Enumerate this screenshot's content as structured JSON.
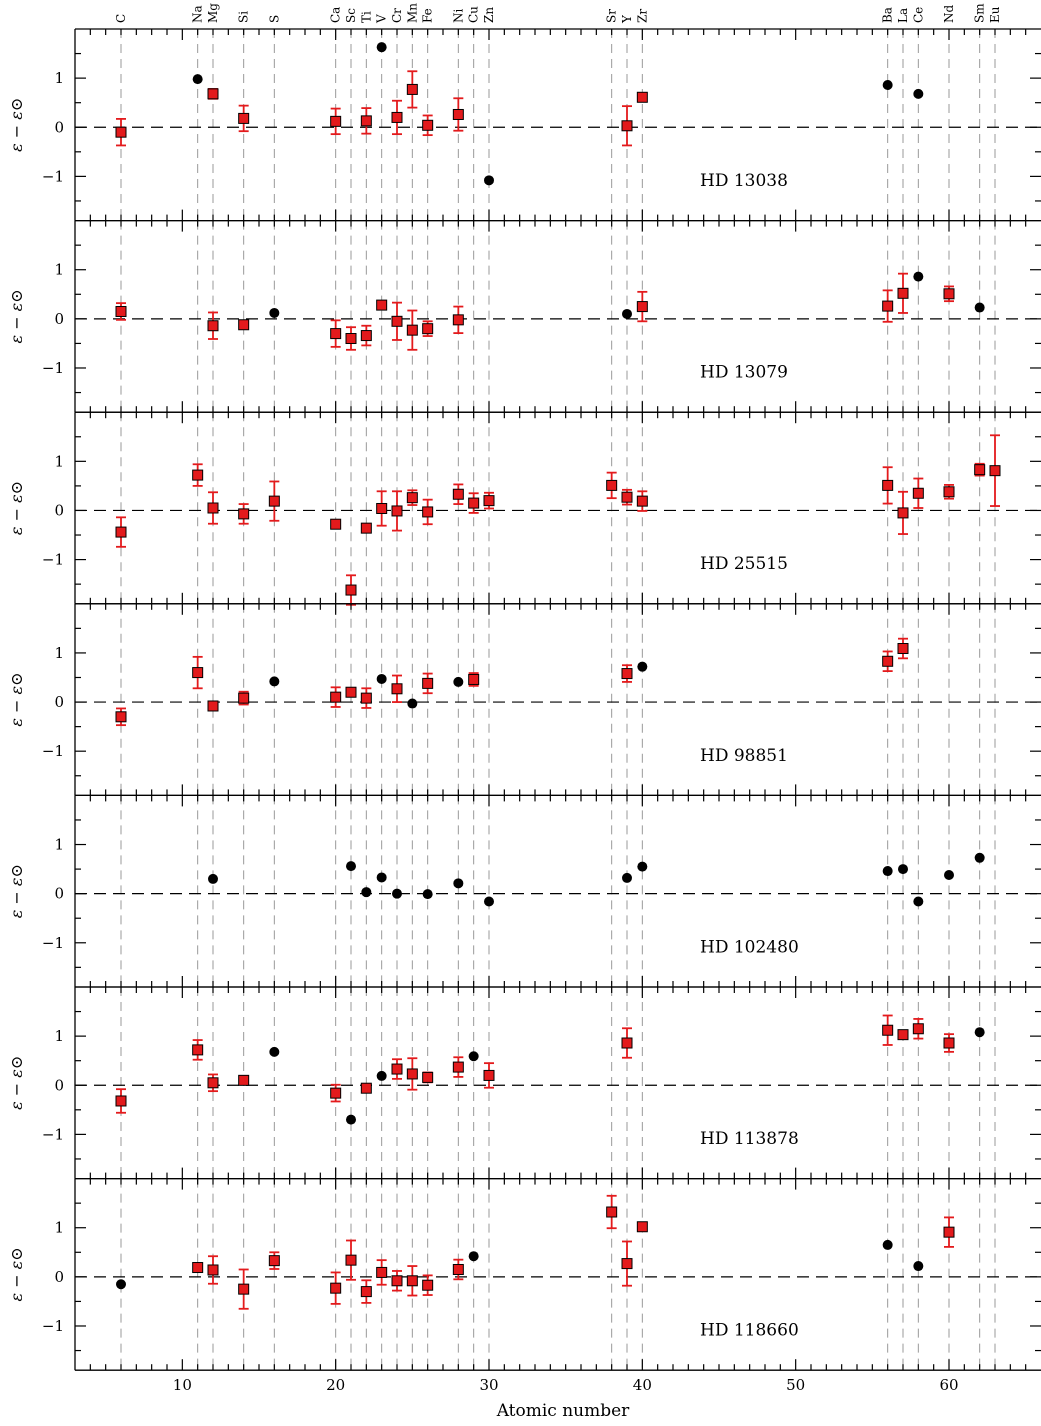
{
  "chart_data": {
    "type": "scatter",
    "xlabel": "Atomic number",
    "ylabel": "ε − ε⊙",
    "xlim": [
      3,
      66
    ],
    "ylim": [
      -1.9,
      2.0
    ],
    "xticks": [
      10,
      20,
      30,
      40,
      50,
      60
    ],
    "yticks": [
      -1,
      0,
      1
    ],
    "ytick_labels": [
      "−1",
      "0",
      "1"
    ],
    "xtick_labels": [
      "10",
      "20",
      "30",
      "40",
      "50",
      "60"
    ],
    "elements": [
      {
        "z": 6,
        "symbol": "C"
      },
      {
        "z": 11,
        "symbol": "Na"
      },
      {
        "z": 12,
        "symbol": "Mg"
      },
      {
        "z": 14,
        "symbol": "Si"
      },
      {
        "z": 16,
        "symbol": "S"
      },
      {
        "z": 20,
        "symbol": "Ca"
      },
      {
        "z": 21,
        "symbol": "Sc"
      },
      {
        "z": 22,
        "symbol": "Ti"
      },
      {
        "z": 23,
        "symbol": "V"
      },
      {
        "z": 24,
        "symbol": "Cr"
      },
      {
        "z": 25,
        "symbol": "Mn"
      },
      {
        "z": 26,
        "symbol": "Fe"
      },
      {
        "z": 28,
        "symbol": "Ni"
      },
      {
        "z": 29,
        "symbol": "Cu"
      },
      {
        "z": 30,
        "symbol": "Zn"
      },
      {
        "z": 38,
        "symbol": "Sr"
      },
      {
        "z": 39,
        "symbol": "Y"
      },
      {
        "z": 40,
        "symbol": "Zr"
      },
      {
        "z": 56,
        "symbol": "Ba"
      },
      {
        "z": 57,
        "symbol": "La"
      },
      {
        "z": 58,
        "symbol": "Ce"
      },
      {
        "z": 60,
        "symbol": "Nd"
      },
      {
        "z": 62,
        "symbol": "Sm"
      },
      {
        "z": 63,
        "symbol": "Eu"
      }
    ],
    "panels": [
      {
        "star": "HD 13038",
        "points": [
          {
            "z": 6,
            "y": -0.1,
            "err": 0.27,
            "kind": "square"
          },
          {
            "z": 11,
            "y": 0.98,
            "kind": "circle"
          },
          {
            "z": 12,
            "y": 0.68,
            "err": 0.1,
            "kind": "square"
          },
          {
            "z": 14,
            "y": 0.18,
            "err": 0.26,
            "kind": "square"
          },
          {
            "z": 20,
            "y": 0.12,
            "err": 0.26,
            "kind": "square"
          },
          {
            "z": 22,
            "y": 0.13,
            "err": 0.26,
            "kind": "square"
          },
          {
            "z": 23,
            "y": 1.63,
            "kind": "circle"
          },
          {
            "z": 24,
            "y": 0.2,
            "err": 0.34,
            "kind": "square"
          },
          {
            "z": 25,
            "y": 0.77,
            "err": 0.37,
            "kind": "square"
          },
          {
            "z": 26,
            "y": 0.04,
            "err": 0.2,
            "kind": "square"
          },
          {
            "z": 28,
            "y": 0.26,
            "err": 0.33,
            "kind": "square"
          },
          {
            "z": 30,
            "y": -1.08,
            "kind": "circle"
          },
          {
            "z": 39,
            "y": 0.03,
            "err": 0.4,
            "kind": "square"
          },
          {
            "z": 40,
            "y": 0.61,
            "kind": "square"
          },
          {
            "z": 56,
            "y": 0.86,
            "kind": "circle"
          },
          {
            "z": 58,
            "y": 0.68,
            "kind": "circle"
          }
        ]
      },
      {
        "star": "HD 13079",
        "points": [
          {
            "z": 6,
            "y": 0.15,
            "err": 0.17,
            "kind": "square"
          },
          {
            "z": 12,
            "y": -0.14,
            "err": 0.27,
            "kind": "square"
          },
          {
            "z": 14,
            "y": -0.12,
            "kind": "square"
          },
          {
            "z": 16,
            "y": 0.12,
            "kind": "circle"
          },
          {
            "z": 20,
            "y": -0.3,
            "err": 0.27,
            "kind": "square"
          },
          {
            "z": 21,
            "y": -0.4,
            "err": 0.23,
            "kind": "square"
          },
          {
            "z": 22,
            "y": -0.34,
            "err": 0.2,
            "kind": "square"
          },
          {
            "z": 23,
            "y": 0.28,
            "kind": "square"
          },
          {
            "z": 24,
            "y": -0.05,
            "err": 0.38,
            "kind": "square"
          },
          {
            "z": 25,
            "y": -0.23,
            "err": 0.4,
            "kind": "square"
          },
          {
            "z": 26,
            "y": -0.2,
            "err": 0.15,
            "kind": "square"
          },
          {
            "z": 28,
            "y": -0.02,
            "err": 0.27,
            "kind": "square"
          },
          {
            "z": 39,
            "y": 0.1,
            "kind": "circle"
          },
          {
            "z": 40,
            "y": 0.25,
            "err": 0.3,
            "kind": "square"
          },
          {
            "z": 56,
            "y": 0.26,
            "err": 0.32,
            "kind": "square"
          },
          {
            "z": 57,
            "y": 0.52,
            "err": 0.4,
            "kind": "square"
          },
          {
            "z": 58,
            "y": 0.86,
            "kind": "circle"
          },
          {
            "z": 60,
            "y": 0.51,
            "err": 0.15,
            "kind": "square"
          },
          {
            "z": 62,
            "y": 0.23,
            "kind": "circle"
          }
        ]
      },
      {
        "star": "HD 25515",
        "points": [
          {
            "z": 6,
            "y": -0.44,
            "err": 0.3,
            "kind": "square"
          },
          {
            "z": 11,
            "y": 0.72,
            "err": 0.22,
            "kind": "square"
          },
          {
            "z": 12,
            "y": 0.05,
            "err": 0.32,
            "kind": "square"
          },
          {
            "z": 14,
            "y": -0.07,
            "err": 0.2,
            "kind": "square"
          },
          {
            "z": 16,
            "y": 0.19,
            "err": 0.4,
            "kind": "square"
          },
          {
            "z": 20,
            "y": -0.28,
            "kind": "square"
          },
          {
            "z": 21,
            "y": -1.62,
            "err": 0.3,
            "kind": "square"
          },
          {
            "z": 22,
            "y": -0.36,
            "kind": "square"
          },
          {
            "z": 23,
            "y": 0.04,
            "err": 0.35,
            "kind": "square"
          },
          {
            "z": 24,
            "y": -0.01,
            "err": 0.4,
            "kind": "square"
          },
          {
            "z": 25,
            "y": 0.26,
            "err": 0.15,
            "kind": "square"
          },
          {
            "z": 26,
            "y": -0.03,
            "err": 0.25,
            "kind": "square"
          },
          {
            "z": 28,
            "y": 0.33,
            "err": 0.2,
            "kind": "square"
          },
          {
            "z": 29,
            "y": 0.15,
            "err": 0.2,
            "kind": "square"
          },
          {
            "z": 30,
            "y": 0.2,
            "err": 0.16,
            "kind": "square"
          },
          {
            "z": 38,
            "y": 0.51,
            "err": 0.26,
            "kind": "square"
          },
          {
            "z": 39,
            "y": 0.27,
            "err": 0.15,
            "kind": "square"
          },
          {
            "z": 40,
            "y": 0.19,
            "err": 0.2,
            "kind": "square"
          },
          {
            "z": 56,
            "y": 0.51,
            "err": 0.37,
            "kind": "square"
          },
          {
            "z": 57,
            "y": -0.05,
            "err": 0.43,
            "kind": "square"
          },
          {
            "z": 58,
            "y": 0.35,
            "err": 0.3,
            "kind": "square"
          },
          {
            "z": 60,
            "y": 0.38,
            "err": 0.14,
            "kind": "square"
          },
          {
            "z": 62,
            "y": 0.83,
            "err": 0.12,
            "kind": "square"
          },
          {
            "z": 63,
            "y": 0.81,
            "err": 0.72,
            "kind": "square"
          }
        ]
      },
      {
        "star": "HD 98851",
        "points": [
          {
            "z": 6,
            "y": -0.3,
            "err": 0.17,
            "kind": "square"
          },
          {
            "z": 11,
            "y": 0.6,
            "err": 0.32,
            "kind": "square"
          },
          {
            "z": 12,
            "y": -0.08,
            "kind": "square"
          },
          {
            "z": 14,
            "y": 0.08,
            "err": 0.13,
            "kind": "square"
          },
          {
            "z": 16,
            "y": 0.42,
            "kind": "circle"
          },
          {
            "z": 20,
            "y": 0.1,
            "err": 0.2,
            "kind": "square"
          },
          {
            "z": 21,
            "y": 0.2,
            "kind": "square"
          },
          {
            "z": 22,
            "y": 0.08,
            "err": 0.2,
            "kind": "square"
          },
          {
            "z": 23,
            "y": 0.47,
            "kind": "circle"
          },
          {
            "z": 24,
            "y": 0.27,
            "err": 0.27,
            "kind": "square"
          },
          {
            "z": 25,
            "y": -0.03,
            "kind": "circle"
          },
          {
            "z": 26,
            "y": 0.38,
            "err": 0.2,
            "kind": "square"
          },
          {
            "z": 28,
            "y": 0.41,
            "kind": "circle"
          },
          {
            "z": 29,
            "y": 0.46,
            "err": 0.13,
            "kind": "square"
          },
          {
            "z": 39,
            "y": 0.58,
            "err": 0.17,
            "kind": "square"
          },
          {
            "z": 40,
            "y": 0.72,
            "kind": "circle"
          },
          {
            "z": 56,
            "y": 0.83,
            "err": 0.2,
            "kind": "square"
          },
          {
            "z": 57,
            "y": 1.09,
            "err": 0.2,
            "kind": "square"
          }
        ]
      },
      {
        "star": "HD 102480",
        "points": [
          {
            "z": 12,
            "y": 0.3,
            "kind": "circle"
          },
          {
            "z": 21,
            "y": 0.56,
            "kind": "circle"
          },
          {
            "z": 22,
            "y": 0.03,
            "kind": "circle"
          },
          {
            "z": 23,
            "y": 0.33,
            "kind": "circle"
          },
          {
            "z": 24,
            "y": 0.0,
            "kind": "circle"
          },
          {
            "z": 26,
            "y": -0.01,
            "kind": "circle"
          },
          {
            "z": 28,
            "y": 0.21,
            "kind": "circle"
          },
          {
            "z": 30,
            "y": -0.16,
            "kind": "circle"
          },
          {
            "z": 39,
            "y": 0.32,
            "kind": "circle"
          },
          {
            "z": 40,
            "y": 0.55,
            "kind": "circle"
          },
          {
            "z": 56,
            "y": 0.46,
            "kind": "circle"
          },
          {
            "z": 57,
            "y": 0.5,
            "kind": "circle"
          },
          {
            "z": 58,
            "y": -0.16,
            "kind": "circle"
          },
          {
            "z": 60,
            "y": 0.38,
            "kind": "circle"
          },
          {
            "z": 62,
            "y": 0.73,
            "kind": "circle"
          }
        ]
      },
      {
        "star": "HD 113878",
        "points": [
          {
            "z": 6,
            "y": -0.32,
            "err": 0.24,
            "kind": "square"
          },
          {
            "z": 11,
            "y": 0.72,
            "err": 0.2,
            "kind": "square"
          },
          {
            "z": 12,
            "y": 0.05,
            "err": 0.17,
            "kind": "square"
          },
          {
            "z": 14,
            "y": 0.1,
            "kind": "square"
          },
          {
            "z": 16,
            "y": 0.68,
            "kind": "circle"
          },
          {
            "z": 20,
            "y": -0.16,
            "err": 0.17,
            "kind": "square"
          },
          {
            "z": 21,
            "y": -0.7,
            "kind": "circle"
          },
          {
            "z": 22,
            "y": -0.06,
            "kind": "square"
          },
          {
            "z": 23,
            "y": 0.19,
            "kind": "circle"
          },
          {
            "z": 24,
            "y": 0.33,
            "err": 0.2,
            "kind": "square"
          },
          {
            "z": 25,
            "y": 0.23,
            "err": 0.32,
            "kind": "square"
          },
          {
            "z": 26,
            "y": 0.16,
            "err": 0.1,
            "kind": "square"
          },
          {
            "z": 28,
            "y": 0.37,
            "err": 0.2,
            "kind": "square"
          },
          {
            "z": 29,
            "y": 0.59,
            "kind": "circle"
          },
          {
            "z": 30,
            "y": 0.2,
            "err": 0.25,
            "kind": "square"
          },
          {
            "z": 39,
            "y": 0.86,
            "err": 0.3,
            "kind": "square"
          },
          {
            "z": 56,
            "y": 1.12,
            "err": 0.3,
            "kind": "square"
          },
          {
            "z": 57,
            "y": 1.03,
            "kind": "square"
          },
          {
            "z": 58,
            "y": 1.15,
            "err": 0.2,
            "kind": "square"
          },
          {
            "z": 60,
            "y": 0.86,
            "err": 0.18,
            "kind": "square"
          },
          {
            "z": 62,
            "y": 1.08,
            "kind": "circle"
          }
        ]
      },
      {
        "star": "HD 118660",
        "points": [
          {
            "z": 6,
            "y": -0.15,
            "kind": "circle"
          },
          {
            "z": 11,
            "y": 0.19,
            "kind": "square"
          },
          {
            "z": 12,
            "y": 0.14,
            "err": 0.28,
            "kind": "square"
          },
          {
            "z": 14,
            "y": -0.25,
            "err": 0.4,
            "kind": "square"
          },
          {
            "z": 16,
            "y": 0.33,
            "err": 0.17,
            "kind": "square"
          },
          {
            "z": 20,
            "y": -0.23,
            "err": 0.32,
            "kind": "square"
          },
          {
            "z": 21,
            "y": 0.34,
            "err": 0.4,
            "kind": "square"
          },
          {
            "z": 22,
            "y": -0.3,
            "err": 0.23,
            "kind": "square"
          },
          {
            "z": 23,
            "y": 0.09,
            "err": 0.25,
            "kind": "square"
          },
          {
            "z": 24,
            "y": -0.08,
            "err": 0.2,
            "kind": "square"
          },
          {
            "z": 25,
            "y": -0.08,
            "err": 0.3,
            "kind": "square"
          },
          {
            "z": 26,
            "y": -0.17,
            "err": 0.2,
            "kind": "square"
          },
          {
            "z": 28,
            "y": 0.15,
            "err": 0.2,
            "kind": "square"
          },
          {
            "z": 29,
            "y": 0.42,
            "kind": "circle"
          },
          {
            "z": 38,
            "y": 1.32,
            "err": 0.33,
            "kind": "square"
          },
          {
            "z": 39,
            "y": 0.27,
            "err": 0.45,
            "kind": "square"
          },
          {
            "z": 40,
            "y": 1.02,
            "kind": "square"
          },
          {
            "z": 56,
            "y": 0.65,
            "kind": "circle"
          },
          {
            "z": 58,
            "y": 0.22,
            "kind": "circle"
          },
          {
            "z": 60,
            "y": 0.91,
            "err": 0.3,
            "kind": "square"
          }
        ]
      }
    ]
  },
  "colors": {
    "square_fill": "#e31a1c",
    "error_bar": "#e31a1c",
    "circle_fill": "#000000",
    "guide_line": "#999999",
    "zero_line": "#000000"
  }
}
